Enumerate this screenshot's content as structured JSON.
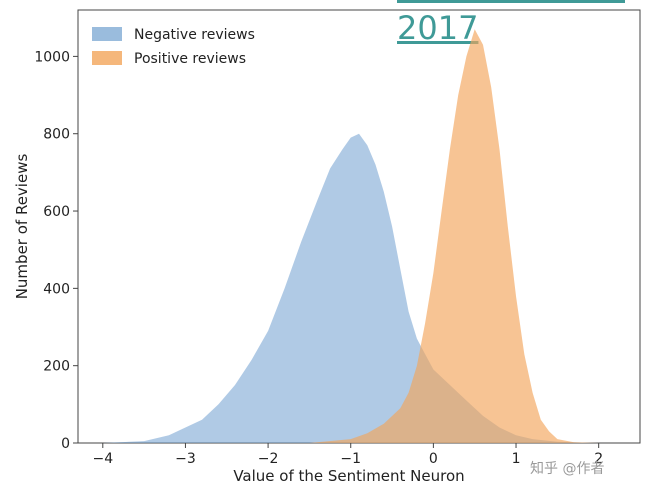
{
  "header": {
    "link_text": "2017"
  },
  "watermark": {
    "text": "知乎 @作者"
  },
  "colors": {
    "negative": "#6f9fcf",
    "positive": "#f2a55a",
    "overlap": "#a58a7a",
    "link": "#3f9a97"
  },
  "chart_data": {
    "type": "histogram",
    "title": "",
    "xlabel": "Value of the Sentiment Neuron",
    "ylabel": "Number of Reviews",
    "xlim": [
      -4.3,
      2.5
    ],
    "ylim": [
      0,
      1120
    ],
    "xticks": [
      -4,
      -3,
      -2,
      -1,
      0,
      1,
      2
    ],
    "yticks": [
      0,
      200,
      400,
      600,
      800,
      1000
    ],
    "legend_position": "top-left",
    "series": [
      {
        "name": "Negative reviews",
        "color": "#6f9fcf",
        "alpha": 0.55,
        "points": [
          [
            -4.0,
            0
          ],
          [
            -3.5,
            5
          ],
          [
            -3.2,
            20
          ],
          [
            -3.0,
            40
          ],
          [
            -2.8,
            60
          ],
          [
            -2.6,
            100
          ],
          [
            -2.4,
            150
          ],
          [
            -2.2,
            215
          ],
          [
            -2.0,
            290
          ],
          [
            -1.8,
            400
          ],
          [
            -1.6,
            520
          ],
          [
            -1.4,
            630
          ],
          [
            -1.25,
            710
          ],
          [
            -1.1,
            760
          ],
          [
            -1.0,
            790
          ],
          [
            -0.9,
            800
          ],
          [
            -0.8,
            770
          ],
          [
            -0.7,
            720
          ],
          [
            -0.6,
            650
          ],
          [
            -0.5,
            560
          ],
          [
            -0.4,
            450
          ],
          [
            -0.3,
            340
          ],
          [
            -0.2,
            270
          ],
          [
            -0.1,
            230
          ],
          [
            0.0,
            190
          ],
          [
            0.2,
            150
          ],
          [
            0.4,
            110
          ],
          [
            0.6,
            70
          ],
          [
            0.8,
            40
          ],
          [
            1.0,
            20
          ],
          [
            1.2,
            10
          ],
          [
            1.5,
            3
          ],
          [
            2.0,
            0
          ]
        ]
      },
      {
        "name": "Positive reviews",
        "color": "#f2a55a",
        "alpha": 0.65,
        "points": [
          [
            -1.5,
            0
          ],
          [
            -1.0,
            10
          ],
          [
            -0.8,
            25
          ],
          [
            -0.6,
            50
          ],
          [
            -0.4,
            90
          ],
          [
            -0.3,
            130
          ],
          [
            -0.2,
            200
          ],
          [
            -0.1,
            310
          ],
          [
            0.0,
            440
          ],
          [
            0.1,
            600
          ],
          [
            0.2,
            760
          ],
          [
            0.3,
            900
          ],
          [
            0.4,
            1000
          ],
          [
            0.5,
            1070
          ],
          [
            0.6,
            1030
          ],
          [
            0.7,
            920
          ],
          [
            0.8,
            760
          ],
          [
            0.9,
            560
          ],
          [
            1.0,
            380
          ],
          [
            1.1,
            230
          ],
          [
            1.2,
            130
          ],
          [
            1.3,
            60
          ],
          [
            1.4,
            30
          ],
          [
            1.5,
            10
          ],
          [
            1.7,
            2
          ],
          [
            2.0,
            0
          ]
        ]
      }
    ]
  }
}
